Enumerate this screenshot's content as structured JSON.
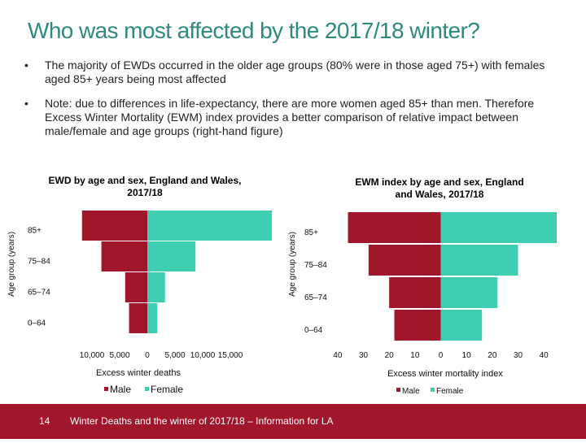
{
  "title": "Who was most affected by the 2017/18 winter?",
  "bullets": [
    "The majority of EWDs occurred in the older age groups (80% were in those aged 75+) with females aged 85+ years being most affected",
    "Note: due to differences in life-expectancy, there are more women aged 85+ than men. Therefore Excess Winter Mortality (EWM) index provides a better comparison of relative impact between male/female and age groups (right-hand figure)"
  ],
  "colors": {
    "male": "#a0162a",
    "female": "#3ecfb3",
    "title": "#2e8a7e",
    "footer": "#a0162a"
  },
  "chart_data": [
    {
      "type": "bar",
      "orientation": "horizontal-pyramid",
      "title": "EWD by age and sex, England and Wales, 2017/18",
      "xlabel": "Excess winter deaths",
      "ylabel": "Age group (years)",
      "categories": [
        "85+",
        "75–84",
        "65–74",
        "0–64"
      ],
      "series": [
        {
          "name": "Male",
          "values": [
            11800,
            8300,
            4000,
            3300
          ]
        },
        {
          "name": "Female",
          "values": [
            22500,
            8700,
            3200,
            1800
          ]
        }
      ],
      "xticks": [
        "10,000",
        "5,000",
        "0",
        "5,000",
        "10,000",
        "15,000"
      ],
      "xlim": [
        -15000,
        22500
      ],
      "legend": "bottom"
    },
    {
      "type": "bar",
      "orientation": "horizontal-pyramid",
      "title": "EWM index by age and sex, England and Wales, 2017/18",
      "xlabel": "Excess winter mortality index",
      "ylabel": "Age group (years)",
      "categories": [
        "85+",
        "75–84",
        "65–74",
        "0–64"
      ],
      "series": [
        {
          "name": "Male",
          "values": [
            36,
            28,
            20,
            18
          ]
        },
        {
          "name": "Female",
          "values": [
            45,
            30,
            22,
            16
          ]
        }
      ],
      "xticks": [
        "40",
        "30",
        "20",
        "10",
        "0",
        "10",
        "20",
        "30",
        "40"
      ],
      "xlim": [
        -45,
        45
      ],
      "legend": "bottom"
    }
  ],
  "footer": {
    "page": "14",
    "text": "Winter Deaths and the winter of 2017/18 – Information for LA"
  }
}
